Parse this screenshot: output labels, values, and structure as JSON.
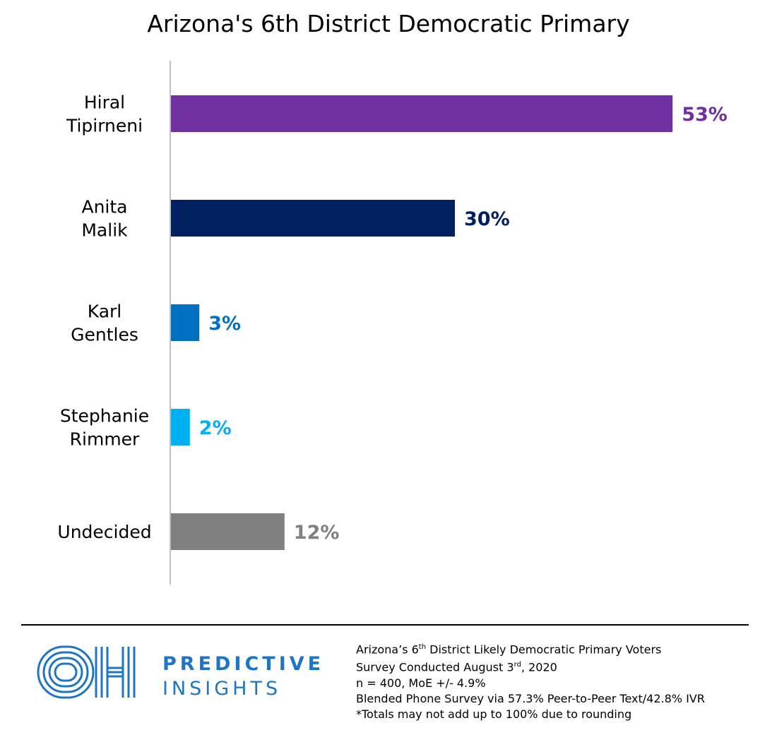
{
  "chart_data": {
    "type": "bar",
    "orientation": "horizontal",
    "title": "Arizona's 6th District Democratic Primary",
    "categories": [
      [
        "Hiral",
        "Tipirneni"
      ],
      [
        "Anita",
        "Malik"
      ],
      [
        "Karl",
        "Gentles"
      ],
      [
        "Stephanie",
        "Rimmer"
      ],
      [
        "Undecided"
      ]
    ],
    "values": [
      53,
      30,
      3,
      2,
      12
    ],
    "value_labels": [
      "53%",
      "30%",
      "3%",
      "2%",
      "12%"
    ],
    "colors": [
      "#7030a0",
      "#002060",
      "#0070c0",
      "#00b0f0",
      "#808080"
    ],
    "xlim": [
      0,
      55
    ],
    "grid": false,
    "legend": "none"
  },
  "footer": {
    "brand_line1": "PREDICTIVE",
    "brand_line2": "INSIGHTS",
    "logo_icon": "oh-logo-icon",
    "note1_pre": "Arizona’s 6",
    "note1_sup": "th",
    "note1_post": " District Likely Democratic Primary Voters",
    "note2_pre": "Survey Conducted August 3",
    "note2_sup": "rd",
    "note2_post": ", 2020",
    "note3": "n = 400,  MoE +/- 4.9%",
    "note4": "Blended Phone Survey via 57.3% Peer-to-Peer Text/42.8% IVR",
    "note5": "*Totals may not add up to 100% due to rounding"
  }
}
